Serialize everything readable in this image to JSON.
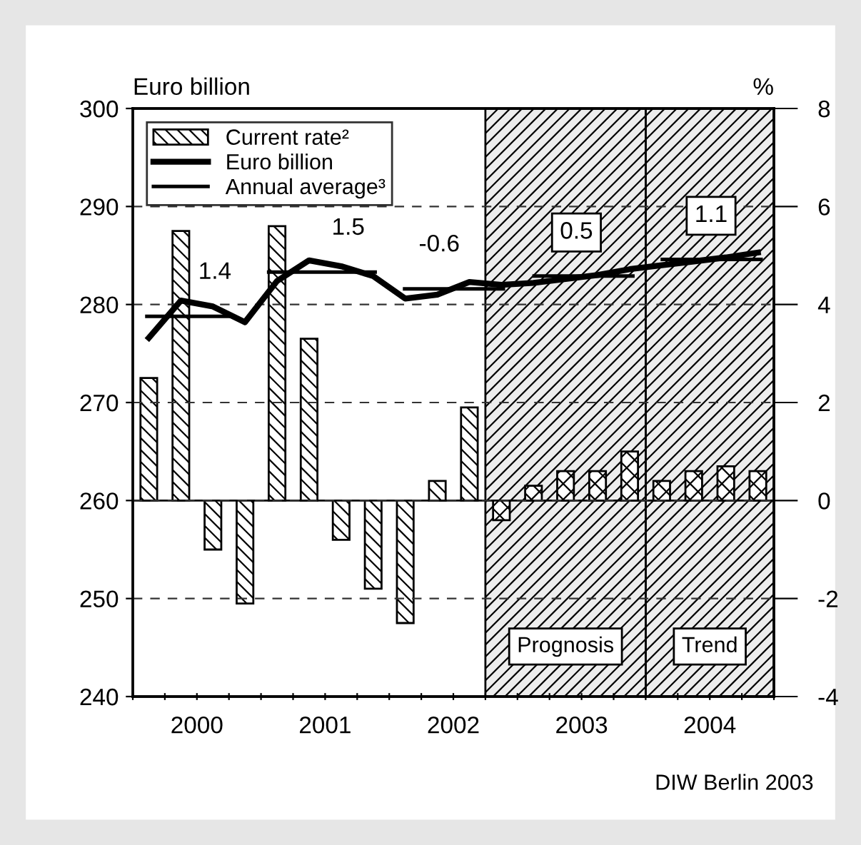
{
  "chart_data": {
    "type": "bar",
    "ylabel": "Euro billion",
    "y2label": "%",
    "xlim": [
      2000,
      2005
    ],
    "xticks": [
      {
        "value": 2000,
        "label": null
      },
      {
        "value": 2000.25,
        "label": null
      },
      {
        "value": 2000.5,
        "label": "2000"
      },
      {
        "value": 2000.75,
        "label": null
      },
      {
        "value": 2001,
        "label": null
      },
      {
        "value": 2001.25,
        "label": null
      },
      {
        "value": 2001.5,
        "label": "2001"
      },
      {
        "value": 2001.75,
        "label": null
      },
      {
        "value": 2002,
        "label": null
      },
      {
        "value": 2002.25,
        "label": null
      },
      {
        "value": 2002.5,
        "label": "2002"
      },
      {
        "value": 2002.75,
        "label": null
      },
      {
        "value": 2003,
        "label": null
      },
      {
        "value": 2003.25,
        "label": null
      },
      {
        "value": 2003.5,
        "label": "2003"
      },
      {
        "value": 2003.75,
        "label": null
      },
      {
        "value": 2004,
        "label": null
      },
      {
        "value": 2004.25,
        "label": null
      },
      {
        "value": 2004.5,
        "label": "2004"
      },
      {
        "value": 2004.75,
        "label": null
      },
      {
        "value": 2005,
        "label": null
      }
    ],
    "ylim": [
      240,
      300
    ],
    "yticks": [
      240,
      250,
      260,
      270,
      280,
      290,
      300
    ],
    "y2lim": [
      -4,
      8
    ],
    "y2ticks": [
      -4,
      -2,
      0,
      2,
      4,
      6,
      8
    ],
    "grid": "y",
    "legend": "top left",
    "series": [
      {
        "name": "Current rate²",
        "axis": "y2",
        "color": "#000000",
        "x": [
          2000.125,
          2000.375,
          2000.625,
          2000.875,
          2001.125,
          2001.375,
          2001.625,
          2001.875,
          2002.125,
          2002.375,
          2002.625
        ],
        "values": [
          2.5,
          5.5,
          -1.0,
          -2.1,
          5.6,
          3.3,
          -0.8,
          -1.8,
          -2.5,
          0.4,
          1.9
        ]
      },
      {
        "axis": "y2",
        "color": "#000000",
        "x": [
          2002.875,
          2003.125,
          2003.375,
          2003.625,
          2003.875,
          2004.125,
          2004.375,
          2004.625,
          2004.875
        ],
        "values": [
          -0.4,
          0.3,
          0.6,
          0.6,
          1.0,
          0.4,
          0.6,
          0.7,
          0.6
        ]
      },
      {
        "name": "Euro billion",
        "type": "line",
        "color": "#000000",
        "x": [
          2000.125,
          2000.375,
          2000.625,
          2000.875,
          2001.125,
          2001.375,
          2001.625,
          2001.875,
          2002.125,
          2002.375,
          2002.625,
          2002.875,
          2003.125,
          2003.375,
          2003.625,
          2003.875,
          2004.125,
          2004.375,
          2004.625,
          2004.875
        ],
        "values": [
          276.6,
          280.4,
          279.8,
          278.2,
          282.4,
          284.5,
          283.9,
          282.9,
          280.6,
          281.0,
          282.3,
          282.0,
          282.2,
          282.6,
          283.0,
          283.6,
          284.0,
          284.4,
          284.8,
          285.3
        ]
      },
      {
        "name": "Annual average³",
        "type": "step",
        "color": "#000000",
        "x": [
          2000.11,
          2000.78
        ],
        "values": [
          278.8,
          278.8
        ]
      },
      {
        "type": "step",
        "color": "#000000",
        "x": [
          2001.06,
          2001.89
        ],
        "values": [
          283.3,
          283.3
        ]
      },
      {
        "type": "step",
        "color": "#000000",
        "x": [
          2002.12,
          2002.89
        ],
        "values": [
          281.6,
          281.6
        ]
      },
      {
        "type": "step",
        "color": "#000000",
        "x": [
          2003.13,
          2003.9
        ],
        "values": [
          282.9,
          282.9
        ]
      },
      {
        "type": "step",
        "color": "#000000",
        "x": [
          2004.13,
          2004.9
        ],
        "values": [
          284.6,
          284.6
        ]
      }
    ],
    "bands": [
      {
        "axis": "x",
        "from": 2002.75,
        "to": 2004,
        "label": "Prognosis",
        "color": "#000000"
      },
      {
        "axis": "x",
        "from": 2004,
        "to": 2005,
        "label": "Trend",
        "color": "#000000"
      }
    ],
    "annotations": [
      {
        "text": "1.4",
        "x": 2000.64,
        "y": 278.8
      },
      {
        "text": "1.5",
        "x": 2001.68,
        "y": 283.3
      },
      {
        "text": "-0.6",
        "x": 2002.39,
        "y": 281.6
      },
      {
        "text": "0.5",
        "x": 2003.46,
        "y": 282.9
      },
      {
        "text": "1.1",
        "x": 2004.51,
        "y": 284.6
      },
      "DIW Berlin 2003"
    ]
  }
}
